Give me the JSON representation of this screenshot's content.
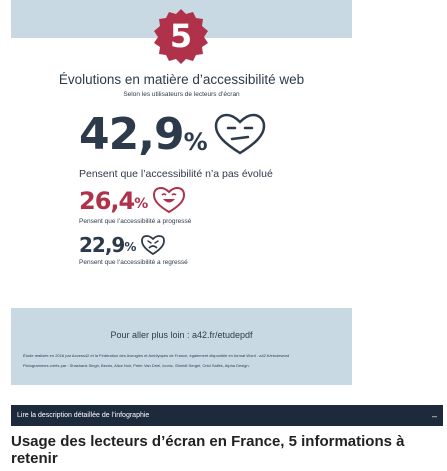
{
  "infographic": {
    "badge_number": "5",
    "title": "Évolutions en matière d’accessibilité web",
    "subtitle": "Selon les utilisateurs de lecteurs d’écran",
    "stats": [
      {
        "value": "42,9",
        "unit": "%",
        "caption": "Pensent que l’accessibilité n’a pas évolué",
        "emoji": "neutral-face-icon"
      },
      {
        "value": "26,4",
        "unit": "%",
        "caption": "Pensent que l’accessibilité a progressé",
        "emoji": "happy-face-icon"
      },
      {
        "value": "22,9",
        "unit": "%",
        "caption": "Pensent que l’accessibilité a regressé",
        "emoji": "sad-face-icon"
      }
    ],
    "more_link": "Pour aller plus loin : a42.fr/etudepdf",
    "credit_line_1": "Étude réalisée en 2016 par Access42 et la Fédération des Aveugles et Amblyopes de France, également disponible en format Word : a42.fr/etudeword",
    "credit_line_2": "Pictogrammes créés par : Shashank Singh, Becris, Alice Noir, Peter Van Driel, Iconic, Shmidt Sergei, Oriol Sallès, Alpha Design.",
    "colors": {
      "accent": "#b0324a",
      "text": "#2d3a4a",
      "band": "#c9d9e4"
    }
  },
  "description_bar": {
    "label": "Lire la description détaillée de l’infographie",
    "toggle": "–"
  },
  "heading": "Usage des lecteurs d’écran en France, 5 informations à retenir"
}
